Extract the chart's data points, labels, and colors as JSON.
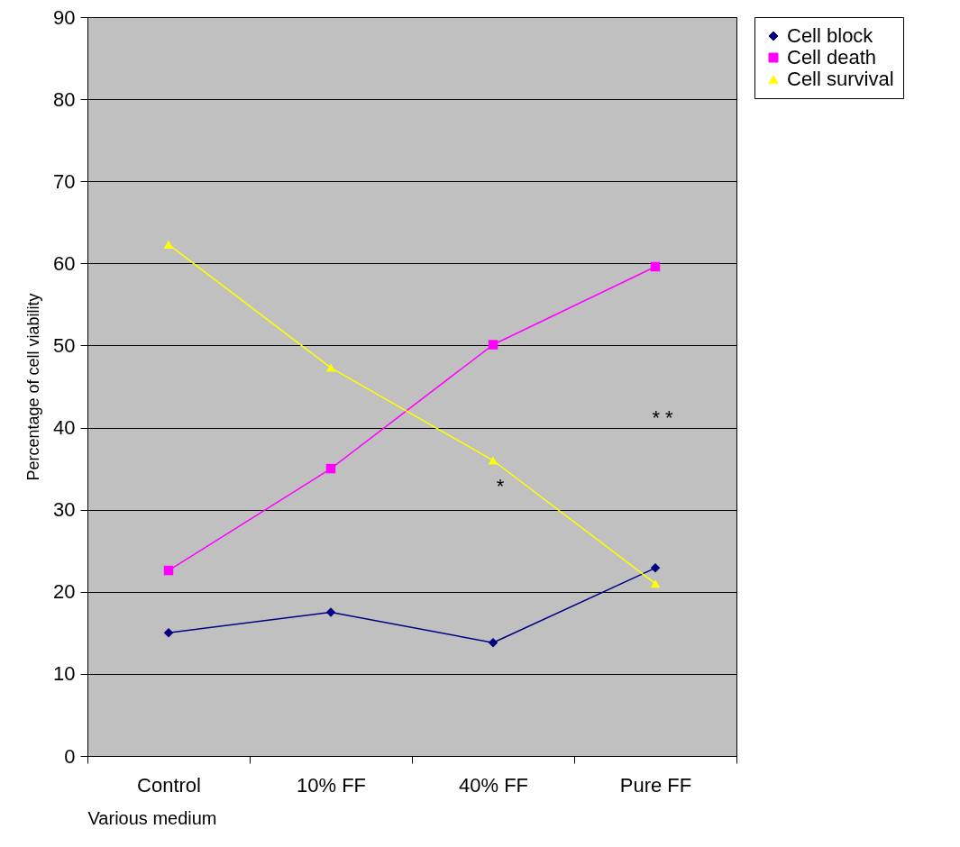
{
  "chart_data": {
    "type": "line",
    "xlabel": "Various medium",
    "ylabel": "Percentage of cell viability",
    "categories": [
      "Control",
      "10% FF",
      "40% FF",
      "Pure FF"
    ],
    "series": [
      {
        "name": "Cell block",
        "color": "#000080",
        "marker": "diamond",
        "values": [
          15.0,
          17.5,
          13.8,
          22.9
        ]
      },
      {
        "name": "Cell death",
        "color": "#ff00ff",
        "marker": "square",
        "values": [
          22.6,
          35.0,
          50.1,
          59.6
        ]
      },
      {
        "name": "Cell survival",
        "color": "#ffff00",
        "marker": "triangle",
        "values": [
          62.3,
          47.3,
          36.0,
          21.0
        ]
      }
    ],
    "ylim": [
      0,
      90
    ],
    "yticks": [
      0,
      10,
      20,
      30,
      40,
      50,
      60,
      70,
      80,
      90
    ],
    "grid": "y",
    "legend": "right",
    "annotations": [
      "*",
      "* *"
    ]
  }
}
